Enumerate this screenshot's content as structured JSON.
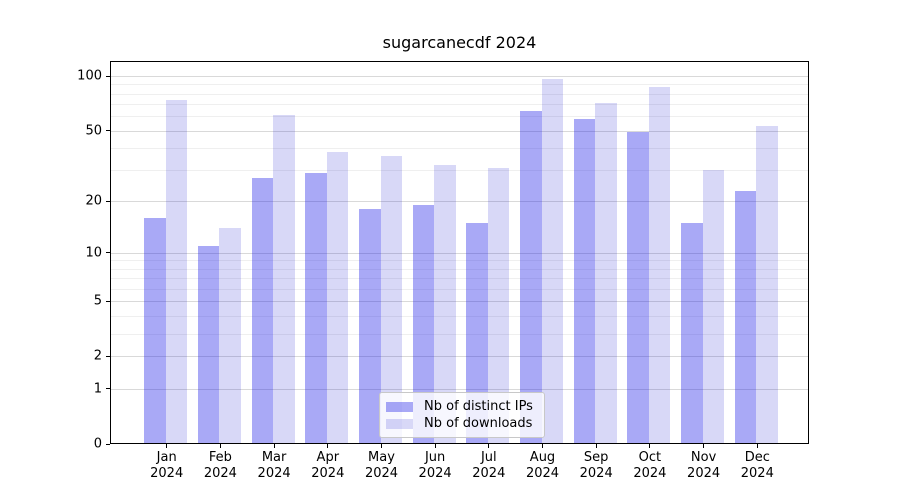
{
  "chart_data": {
    "type": "bar",
    "title": "sugarcanecdf 2024",
    "categories": [
      "Jan",
      "Feb",
      "Mar",
      "Apr",
      "May",
      "Jun",
      "Jul",
      "Aug",
      "Sep",
      "Oct",
      "Nov",
      "Dec"
    ],
    "category_year": "2024",
    "series": [
      {
        "name": "Nb of distinct IPs",
        "color": "#a9a9f6",
        "fill": "rgba(23,23,231,0.37)",
        "values": [
          16,
          11,
          27,
          29,
          18,
          19,
          15,
          64,
          58,
          49,
          15,
          23
        ]
      },
      {
        "name": "Nb of downloads",
        "color": "#d8d8f7",
        "fill": "rgba(11,11,205,0.16)",
        "values": [
          74,
          14,
          61,
          38,
          36,
          32,
          31,
          97,
          71,
          87,
          30,
          53
        ]
      }
    ],
    "xlabel": "",
    "ylabel": "",
    "yscale": "log1p",
    "ylim": [
      0,
      121
    ],
    "yticks": [
      100,
      50,
      20,
      10,
      5,
      2,
      1,
      0
    ],
    "minor_gridlines": [
      3,
      4,
      6,
      7,
      8,
      9,
      30,
      40,
      60,
      70,
      80,
      90
    ],
    "grid": true,
    "legend_position": "lower center"
  }
}
